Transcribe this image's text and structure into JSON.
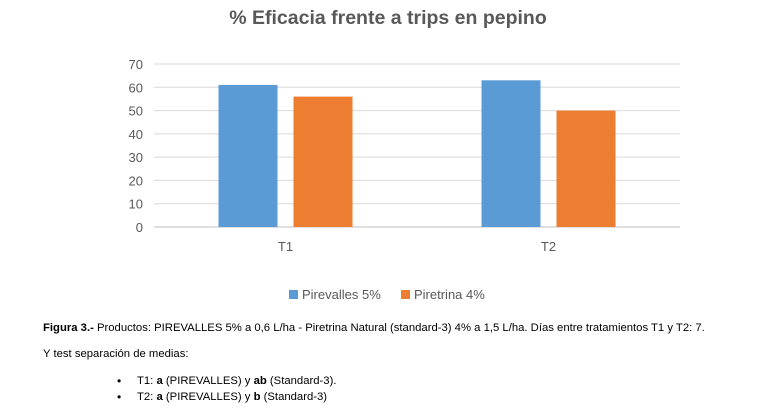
{
  "chart_data": {
    "type": "bar",
    "title": "% Eficacia frente a trips en pepino",
    "categories": [
      "T1",
      "T2"
    ],
    "series": [
      {
        "name": "Pirevalles 5%",
        "values": [
          61,
          63
        ],
        "color": "#5b9bd5"
      },
      {
        "name": "Piretrina 4%",
        "values": [
          56,
          50
        ],
        "color": "#ed7d31"
      }
    ],
    "ylim": [
      0,
      70
    ],
    "yticks": [
      "0",
      "10",
      "20",
      "30",
      "40",
      "50",
      "60",
      "70"
    ],
    "grid": true,
    "legend": "bottom"
  },
  "caption": {
    "figure_label": "Figura 3.-",
    "figure_text": " Productos: PIREVALLES 5% a 0,6 L/ha - Piretrina Natural (standard-3) 4% a 1,5 L/ha. Días entre tratamientos T1 y T2: 7.",
    "test_line": "Y test separación de medias:",
    "bullets": [
      {
        "label": "T1:",
        "a": "a",
        "a_text": " (PIREVALLES) y ",
        "b": "ab",
        "b_text": " (Standard-3)."
      },
      {
        "label": "T2:",
        "a": "a",
        "a_text": " (PIREVALLES) y ",
        "b": "b",
        "b_text": " (Standard-3)"
      }
    ]
  }
}
